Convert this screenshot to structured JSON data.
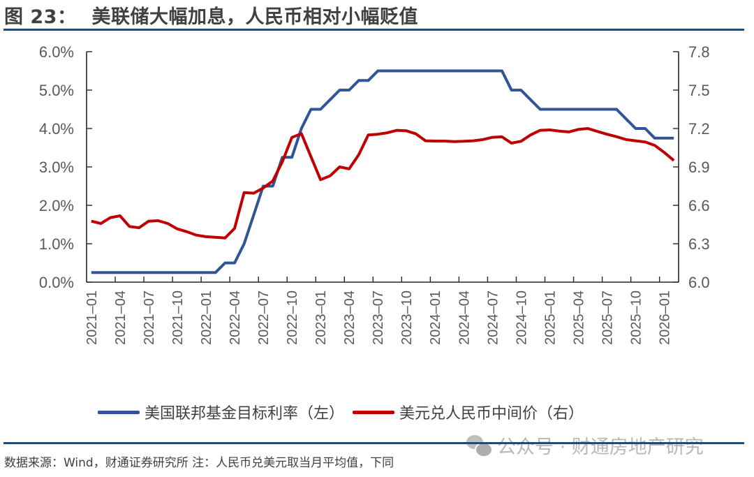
{
  "header": {
    "figure_number": "图 23：",
    "title": "美联储大幅加息，人民币相对小幅贬值"
  },
  "legend": {
    "items": [
      {
        "label": "美国联邦基金目标利率（左）",
        "color": "#2f5597"
      },
      {
        "label": "美元兑人民币中间价（右）",
        "color": "#c00000"
      }
    ]
  },
  "footer": {
    "source": "数据来源：Wind，财通证券研究所  注：人民币兑美元取当月平均值，下同",
    "watermark": "公众号 · 财通房地产研究"
  },
  "chart_data": {
    "type": "line",
    "title": "美联储大幅加息，人民币相对小幅贬值",
    "xlabel": "",
    "ylabel_left": "",
    "ylabel_right": "",
    "ylim_left": [
      0,
      6
    ],
    "ylim_right": [
      6.0,
      7.8
    ],
    "yticks_left": [
      "0.0%",
      "1.0%",
      "2.0%",
      "3.0%",
      "4.0%",
      "5.0%",
      "6.0%"
    ],
    "yticks_right": [
      "6.0",
      "6.3",
      "6.6",
      "6.9",
      "7.2",
      "7.5",
      "7.8"
    ],
    "xtick_labels": [
      "2021-01",
      "2021-04",
      "2021-07",
      "2021-10",
      "2022-01",
      "2022-04",
      "2022-07",
      "2022-10",
      "2023-01",
      "2023-04",
      "2023-07",
      "2023-10",
      "2024-01",
      "2024-04",
      "2024-07",
      "2024-10",
      "2025-01",
      "2025-04",
      "2025-07",
      "2025-10",
      "2026-01"
    ],
    "grid": false,
    "legend_position": "bottom",
    "x": [
      "2021-01",
      "2021-02",
      "2021-03",
      "2021-04",
      "2021-05",
      "2021-06",
      "2021-07",
      "2021-08",
      "2021-09",
      "2021-10",
      "2021-11",
      "2021-12",
      "2022-01",
      "2022-02",
      "2022-03",
      "2022-04",
      "2022-05",
      "2022-06",
      "2022-07",
      "2022-08",
      "2022-09",
      "2022-10",
      "2022-11",
      "2022-12",
      "2023-01",
      "2023-02",
      "2023-03",
      "2023-04",
      "2023-05",
      "2023-06",
      "2023-07",
      "2023-08",
      "2023-09",
      "2023-10",
      "2023-11",
      "2023-12",
      "2024-01",
      "2024-02",
      "2024-03",
      "2024-04",
      "2024-05",
      "2024-06",
      "2024-07",
      "2024-08",
      "2024-09",
      "2024-10",
      "2024-11",
      "2024-12",
      "2025-01",
      "2025-02",
      "2025-03",
      "2025-04",
      "2025-05",
      "2025-06",
      "2025-07",
      "2025-08",
      "2025-09",
      "2025-10",
      "2025-11",
      "2025-12",
      "2026-01",
      "2026-02"
    ],
    "series": [
      {
        "name": "美国联邦基金目标利率（左）",
        "axis": "left",
        "color": "#2f5597",
        "values": [
          0.25,
          0.25,
          0.25,
          0.25,
          0.25,
          0.25,
          0.25,
          0.25,
          0.25,
          0.25,
          0.25,
          0.25,
          0.25,
          0.25,
          0.5,
          0.5,
          1.0,
          1.75,
          2.5,
          2.5,
          3.25,
          3.25,
          4.0,
          4.5,
          4.5,
          4.75,
          5.0,
          5.0,
          5.25,
          5.25,
          5.5,
          5.5,
          5.5,
          5.5,
          5.5,
          5.5,
          5.5,
          5.5,
          5.5,
          5.5,
          5.5,
          5.5,
          5.5,
          5.5,
          5.0,
          5.0,
          4.75,
          4.5,
          4.5,
          4.5,
          4.5,
          4.5,
          4.5,
          4.5,
          4.5,
          4.5,
          4.25,
          4.0,
          4.0,
          3.75,
          3.75,
          3.75
        ]
      },
      {
        "name": "美元兑人民币中间价（右）",
        "axis": "right",
        "color": "#c00000",
        "values": [
          6.476,
          6.458,
          6.504,
          6.518,
          6.435,
          6.425,
          6.476,
          6.48,
          6.458,
          6.416,
          6.394,
          6.367,
          6.355,
          6.35,
          6.345,
          6.42,
          6.7,
          6.695,
          6.735,
          6.79,
          6.94,
          7.13,
          7.16,
          6.98,
          6.8,
          6.83,
          6.9,
          6.885,
          6.995,
          7.15,
          7.155,
          7.167,
          7.186,
          7.182,
          7.158,
          7.104,
          7.102,
          7.102,
          7.098,
          7.1,
          7.104,
          7.113,
          7.131,
          7.135,
          7.086,
          7.1,
          7.15,
          7.186,
          7.189,
          7.18,
          7.173,
          7.193,
          7.2,
          7.177,
          7.155,
          7.136,
          7.113,
          7.104,
          7.095,
          7.068,
          7.013,
          6.95
        ]
      }
    ]
  }
}
